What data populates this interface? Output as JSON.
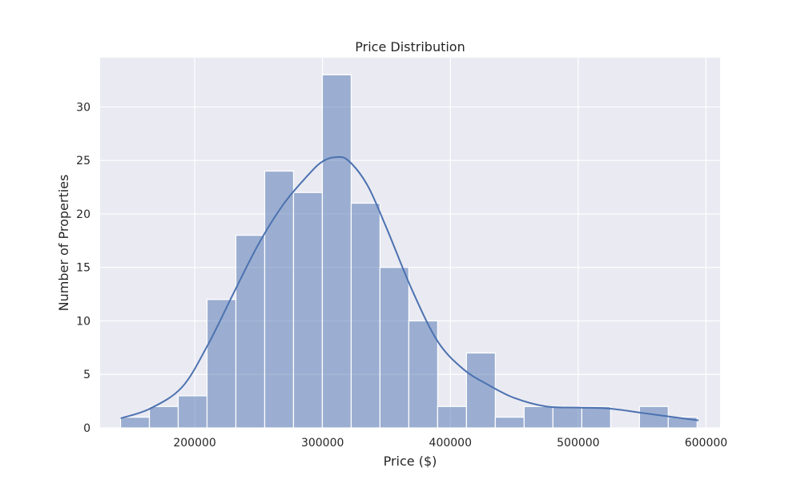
{
  "chart_data": {
    "type": "bar",
    "subtype": "histogram",
    "title": "Price Distribution",
    "xlabel": "Price ($)",
    "ylabel": "Number of Properties",
    "xlim": [
      126000,
      611000
    ],
    "ylim": [
      0,
      34.6
    ],
    "xticks": [
      200000,
      300000,
      400000,
      500000,
      600000
    ],
    "yticks": [
      0,
      5,
      10,
      15,
      20,
      25,
      30
    ],
    "grid": true,
    "colors": {
      "background": "#eaeaf2",
      "bar": "#4c72b0",
      "grid": "#ffffff"
    },
    "bins": {
      "start": 142000,
      "width": 22550,
      "counts": [
        1,
        2,
        3,
        12,
        18,
        24,
        22,
        33,
        21,
        15,
        10,
        2,
        7,
        1,
        2,
        2,
        2,
        0,
        2,
        1
      ]
    },
    "kde": {
      "x": [
        142000,
        165000,
        190000,
        210000,
        230000,
        250000,
        270000,
        290000,
        300000,
        310000,
        320000,
        335000,
        350000,
        370000,
        390000,
        410000,
        430000,
        450000,
        475000,
        500000,
        525000,
        550000,
        575000,
        594000
      ],
      "y": [
        0.9,
        1.8,
        3.8,
        7.7,
        12.5,
        17.2,
        21.0,
        23.8,
        24.9,
        25.3,
        25.0,
        22.7,
        18.7,
        12.9,
        8.1,
        5.5,
        4.0,
        2.8,
        2.0,
        1.9,
        1.8,
        1.4,
        1.0,
        0.7
      ]
    }
  }
}
